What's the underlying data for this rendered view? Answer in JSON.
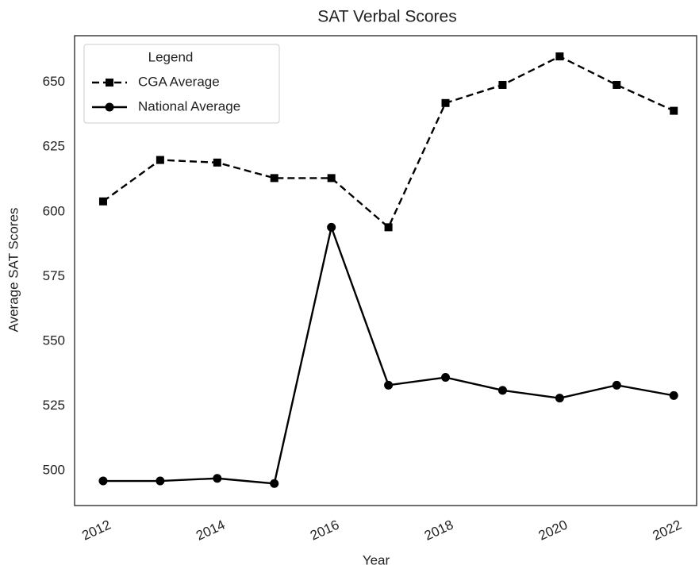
{
  "chart_data": {
    "type": "line",
    "title": "SAT Verbal Scores",
    "x_label": "Year",
    "y_label": "Average SAT Scores",
    "x": [
      2012,
      2013,
      2014,
      2015,
      2016,
      2017,
      2018,
      2019,
      2020,
      2021,
      2022
    ],
    "series": [
      {
        "name": "CGA Average",
        "color": "#000000",
        "marker": "square",
        "linestyle": "dashed",
        "values": [
          604,
          620,
          619,
          613,
          613,
          594,
          642,
          649,
          660,
          649,
          639
        ]
      },
      {
        "name": "National Average",
        "color": "#000000",
        "marker": "circle",
        "linestyle": "solid",
        "values": [
          496,
          496,
          497,
          495,
          594,
          533,
          536,
          531,
          528,
          533,
          529
        ]
      }
    ],
    "xlim": [
      2011.5,
      2022.4
    ],
    "xticks": [
      2012,
      2014,
      2016,
      2018,
      2020,
      2022
    ],
    "ylim": [
      486.5,
      668
    ],
    "yticks": [
      500,
      525,
      550,
      575,
      600,
      625,
      650
    ],
    "grid": false,
    "legend_title": "Legend",
    "legend_position": "upper left"
  }
}
